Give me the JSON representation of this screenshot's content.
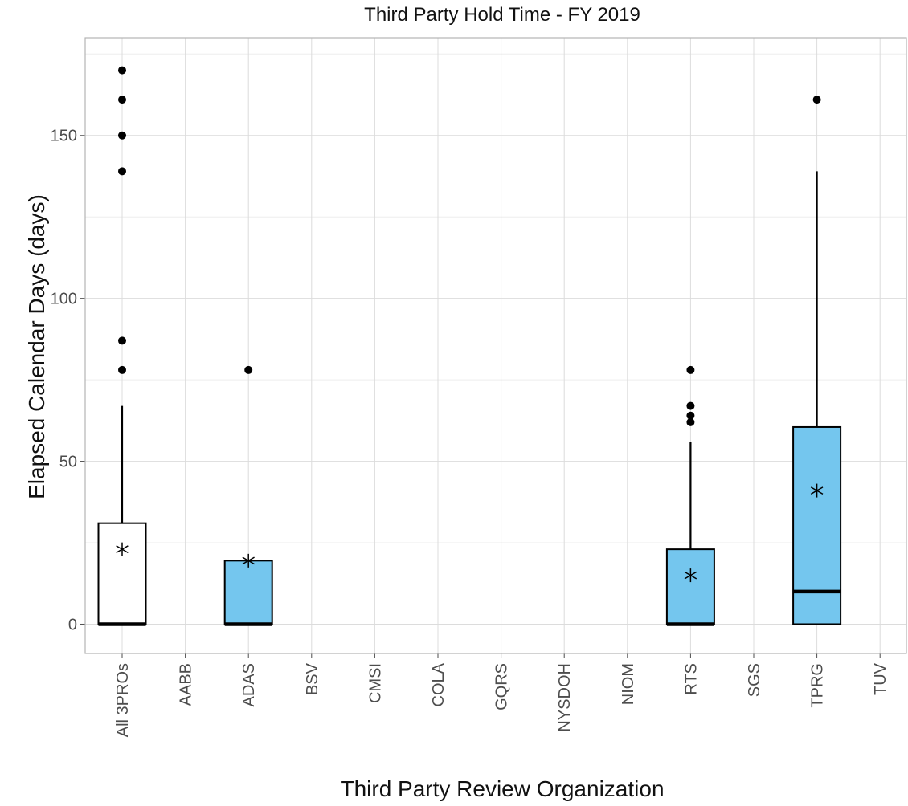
{
  "chart_data": {
    "type": "box",
    "title": "Third Party Hold Time - FY 2019",
    "xlabel": "Third Party Review Organization",
    "ylabel": "Elapsed Calendar Days (days)",
    "ylim": [
      -9,
      180
    ],
    "yticks": [
      0,
      50,
      100,
      150
    ],
    "grid": true,
    "categories": [
      "All 3PROs",
      "AABB",
      "ADAS",
      "BSV",
      "CMSI",
      "COLA",
      "GQRS",
      "NYSDOH",
      "NIOM",
      "RTS",
      "SGS",
      "TPRG",
      "TUV"
    ],
    "colors": {
      "aggregate_fill": "#ffffff",
      "org_fill": "#74c6ee",
      "stroke": "#000000",
      "grid": "#dcdcdc"
    },
    "boxes": [
      {
        "category": "All 3PROs",
        "q1": 0,
        "median": 0,
        "q3": 31,
        "whisker_low": 0,
        "whisker_high": 67,
        "mean": 23,
        "outliers": [
          78,
          87,
          139,
          150,
          161,
          170
        ],
        "fill": "white"
      },
      {
        "category": "ADAS",
        "q1": 0,
        "median": 0,
        "q3": 19.5,
        "whisker_low": 0,
        "whisker_high": 19.5,
        "mean": 19.5,
        "outliers": [
          78
        ],
        "fill": "blue"
      },
      {
        "category": "RTS",
        "q1": 0,
        "median": 0,
        "q3": 23,
        "whisker_low": 0,
        "whisker_high": 56,
        "mean": 15,
        "outliers": [
          62,
          64,
          67,
          78
        ],
        "fill": "blue"
      },
      {
        "category": "TPRG",
        "q1": 0,
        "median": 10,
        "q3": 60.5,
        "whisker_low": 0,
        "whisker_high": 139,
        "mean": 41,
        "outliers": [
          161
        ],
        "fill": "blue"
      }
    ]
  }
}
